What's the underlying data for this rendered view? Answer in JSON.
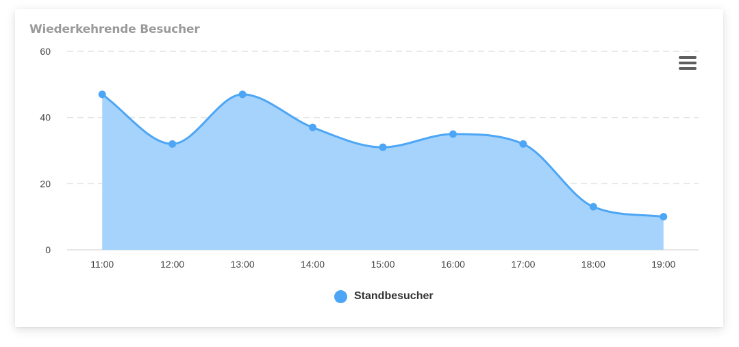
{
  "card": {
    "title": "Wiederkehrende Besucher"
  },
  "toolbar": {
    "menu_icon": "hamburger-menu-icon"
  },
  "colors": {
    "series": "#4da6f5",
    "area_fill": "#a6d3fb",
    "grid": "#e2e2e2",
    "title": "#9a9a9a",
    "menu": "#5f5f5f"
  },
  "chart_data": {
    "type": "area",
    "title": "Wiederkehrende Besucher",
    "xlabel": "",
    "ylabel": "",
    "categories": [
      "11:00",
      "12:00",
      "13:00",
      "14:00",
      "15:00",
      "16:00",
      "17:00",
      "18:00",
      "19:00"
    ],
    "series": [
      {
        "name": "Standbesucher",
        "values": [
          47,
          32,
          47,
          37,
          31,
          35,
          32,
          13,
          10
        ]
      }
    ],
    "ylim": [
      0,
      60
    ],
    "yticks": [
      0,
      20,
      40,
      60
    ],
    "grid": true,
    "legend": "bottom-center",
    "curve": "smooth",
    "markers": true
  }
}
